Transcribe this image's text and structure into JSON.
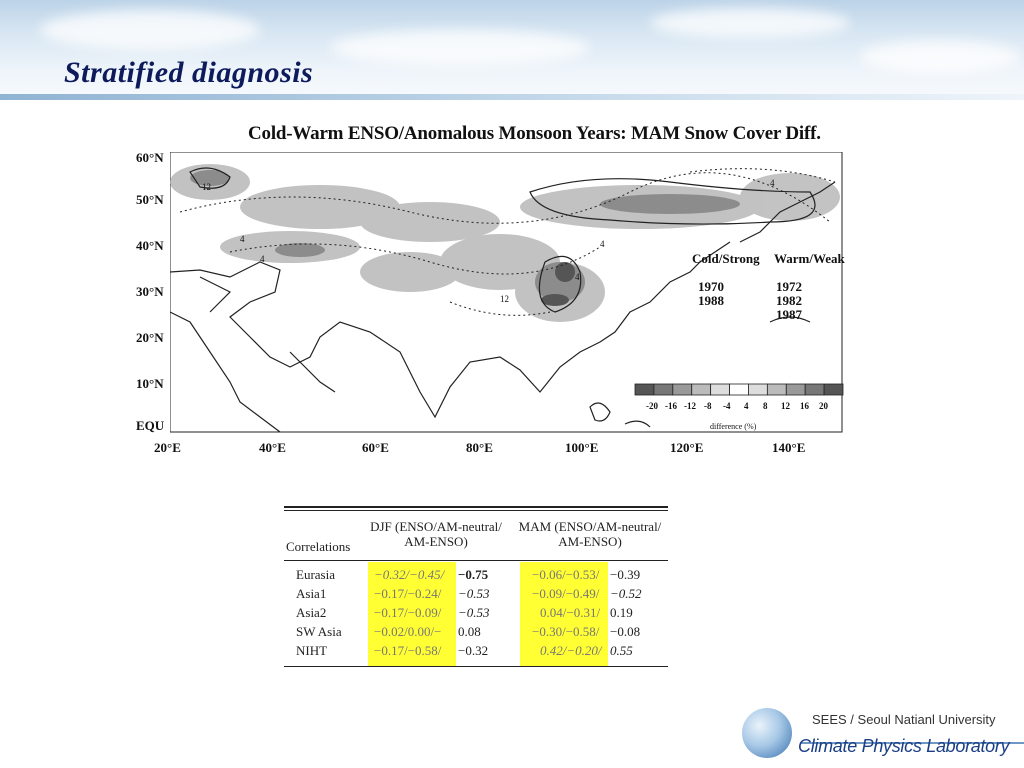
{
  "slide": {
    "title": "Stratified diagnosis"
  },
  "figure": {
    "title": "Cold-Warm ENSO/Anomalous Monsoon Years: MAM Snow Cover Diff.",
    "lat_labels": [
      "60°N",
      "50°N",
      "40°N",
      "30°N",
      "20°N",
      "10°N",
      "EQU"
    ],
    "lon_labels": [
      "20°E",
      "40°E",
      "60°E",
      "80°E",
      "100°E",
      "120°E",
      "140°E"
    ],
    "legend": {
      "cold_header": "Cold/Strong",
      "warm_header": "Warm/Weak",
      "cold_years": [
        "1970",
        "1988"
      ],
      "warm_years": [
        "1972",
        "1982",
        "1987"
      ]
    },
    "colorbar": {
      "ticks": [
        "-20",
        "-16",
        "-12",
        "-8",
        "-4",
        "4",
        "8",
        "12",
        "16",
        "20"
      ],
      "caption": "difference (%)",
      "colors": [
        "#555555",
        "#777777",
        "#999999",
        "#bbbbbb",
        "#dddddd",
        "#ffffff",
        "#dddddd",
        "#bbbbbb",
        "#999999",
        "#777777",
        "#555555"
      ]
    },
    "contour_labels": [
      "12",
      "4",
      "4",
      "4",
      "4",
      "12",
      "4"
    ]
  },
  "table": {
    "header": {
      "corr": "Correlations",
      "djf": "DJF (ENSO/AM-neutral/ AM-ENSO)",
      "mam": "MAM (ENSO/AM-neutral/ AM-ENSO)"
    },
    "rows": [
      {
        "label": "Eurasia",
        "djf_hl": "−0.32/−0.45/",
        "djf_rest": "−0.75",
        "mam_hl": "−0.06/−0.53/",
        "mam_rest": "−0.39"
      },
      {
        "label": "Asia1",
        "djf_hl": "−0.17/−0.24/",
        "djf_rest": "−0.53",
        "mam_hl": "−0.09/−0.49/",
        "mam_rest": "−0.52"
      },
      {
        "label": "Asia2",
        "djf_hl": "−0.17/−0.09/",
        "djf_rest": "−0.53",
        "mam_hl": "0.04/−0.31/",
        "mam_rest": "0.19"
      },
      {
        "label": "SW Asia",
        "djf_hl": "−0.02/0.00/−",
        "djf_rest": "0.08",
        "mam_hl": "−0.30/−0.58/",
        "mam_rest": "−0.08"
      },
      {
        "label": "NIHT",
        "djf_hl": "−0.17/−0.58/",
        "djf_rest": "−0.32",
        "mam_hl": "0.42/−0.20/",
        "mam_rest": "0.55"
      }
    ],
    "highlight_color": "#ffff33"
  },
  "footer": {
    "university": "SEES / Seoul Natianl University",
    "lab": "Climate Physics Laboratory"
  }
}
